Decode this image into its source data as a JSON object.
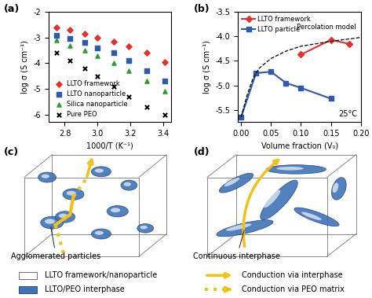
{
  "chart_data": [
    {
      "type": "scatter",
      "panel": "(a)",
      "x_label": "1000/T (K⁻¹)",
      "y_label": "log σ (S cm⁻¹)",
      "x": [
        2.75,
        2.83,
        2.92,
        3.0,
        3.1,
        3.19,
        3.3,
        3.41
      ],
      "series": [
        {
          "name": "LLTO framework",
          "color": "#e0332e",
          "marker": "diamond",
          "values": [
            -2.6,
            -2.7,
            -2.85,
            -3.0,
            -3.15,
            -3.35,
            -3.6,
            -3.95
          ]
        },
        {
          "name": "LLTO nanoparticle",
          "color": "#2f5aa8",
          "marker": "square",
          "values": [
            -2.9,
            -3.05,
            -3.2,
            -3.4,
            -3.6,
            -3.9,
            -4.3,
            -4.7
          ]
        },
        {
          "name": "Silica nanoparticle",
          "color": "#2ca02c",
          "marker": "triangle",
          "values": [
            -3.1,
            -3.3,
            -3.5,
            -3.7,
            -4.0,
            -4.3,
            -4.7,
            -5.1
          ]
        },
        {
          "name": "Pure PEO",
          "color": "#000000",
          "marker": "x",
          "values": [
            -3.6,
            -3.9,
            -4.2,
            -4.5,
            -4.9,
            -5.3,
            -5.7,
            -6.0
          ]
        }
      ],
      "xlim": [
        2.7,
        3.45
      ],
      "xticks": [
        2.8,
        3.0,
        3.2,
        3.4
      ],
      "ylim": [
        -6.3,
        -2
      ],
      "yticks": [
        -6,
        -5,
        -4,
        -3,
        -2
      ],
      "legend": "lower left"
    },
    {
      "type": "line",
      "panel": "(b)",
      "x_label": "Volume fraction (V₀)",
      "y_label": "log σ (S cm⁻¹)",
      "series": [
        {
          "name": "LLTO framework",
          "color": "#e0332e",
          "marker": "diamond",
          "line_style": "solid",
          "x": [
            0.1,
            0.15,
            0.18
          ],
          "values": [
            -4.37,
            -4.07,
            -4.15
          ]
        },
        {
          "name": "LLTO particle",
          "color": "#2f5aa8",
          "marker": "square",
          "line_style": "solid",
          "x": [
            0.0,
            0.025,
            0.05,
            0.075,
            0.1,
            0.15
          ],
          "values": [
            -5.65,
            -4.75,
            -4.72,
            -4.95,
            -5.05,
            -5.27
          ]
        }
      ],
      "model_curve": {
        "label": "Percolation model",
        "color": "#000000",
        "line_style": "dashed",
        "x": [
          0.0,
          0.01,
          0.02,
          0.03,
          0.05,
          0.075,
          0.1,
          0.15,
          0.2
        ],
        "values": [
          -5.65,
          -5.2,
          -4.85,
          -4.65,
          -4.45,
          -4.3,
          -4.2,
          -4.1,
          -4.02
        ]
      },
      "annotations": [
        "25°C"
      ],
      "xlim": [
        -0.005,
        0.2
      ],
      "xticks": [
        {
          "value": 0.0,
          "label": "0.00"
        },
        {
          "value": 0.05,
          "label": "0.05"
        },
        {
          "value": 0.1,
          "label": "0.10"
        },
        {
          "value": 0.15,
          "label": "0.15"
        },
        {
          "value": 0.2,
          "label": "0.20"
        }
      ],
      "ylim": [
        -5.75,
        -3.5
      ],
      "yticks": [
        -5.5,
        -5.0,
        -4.5,
        -4.0,
        -3.5
      ],
      "legend": "upper left"
    }
  ],
  "diagrams": {
    "c": {
      "panel": "(c)",
      "callout": "Agglomerated particles"
    },
    "d": {
      "panel": "(d)",
      "callout": "Continuous interphase"
    },
    "legend": {
      "particle": "LLTO framework/nanoparticle",
      "interphase": "LLTO/PEO interphase",
      "arrow_solid": "Conduction via interphase",
      "arrow_dotted": "Conduction via PEO matrix"
    }
  }
}
